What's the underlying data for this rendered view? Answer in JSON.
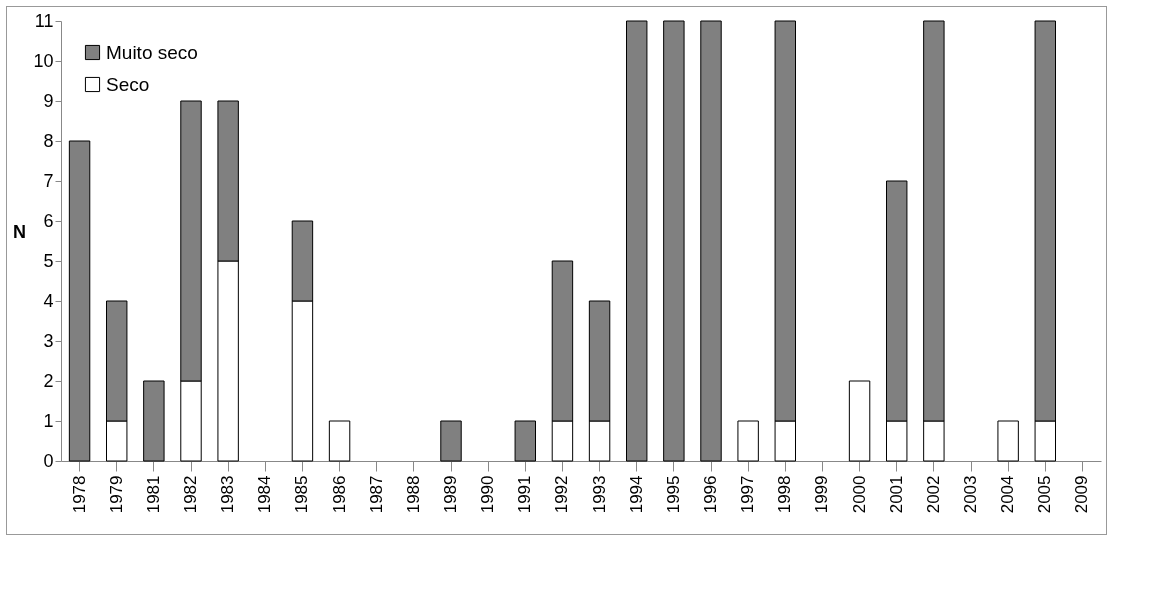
{
  "chart_data": {
    "type": "bar",
    "stacked": true,
    "ylabel": "N",
    "categories": [
      "1978",
      "1979",
      "1981",
      "1982",
      "1983",
      "1984",
      "1985",
      "1986",
      "1987",
      "1988",
      "1989",
      "1990",
      "1991",
      "1992",
      "1993",
      "1994",
      "1995",
      "1996",
      "1997",
      "1998",
      "1999",
      "2000",
      "2001",
      "2002",
      "2003",
      "2004",
      "2005",
      "2009"
    ],
    "series": [
      {
        "name": "Seco",
        "color": "#ffffff",
        "values": [
          0,
          1,
          0,
          2,
          5,
          0,
          4,
          1,
          0,
          0,
          0,
          0,
          0,
          1,
          1,
          0,
          0,
          0,
          1,
          1,
          0,
          2,
          1,
          1,
          0,
          1,
          1,
          0
        ]
      },
      {
        "name": "Muito seco",
        "color": "#808080",
        "values": [
          8,
          3,
          2,
          7,
          4,
          0,
          2,
          0,
          0,
          0,
          1,
          0,
          1,
          4,
          3,
          11,
          11,
          11,
          0,
          10,
          0,
          0,
          6,
          10,
          0,
          0,
          10,
          0
        ]
      }
    ],
    "ylim": [
      0,
      11
    ],
    "yticks": [
      0,
      1,
      2,
      3,
      4,
      5,
      6,
      7,
      8,
      9,
      10,
      11
    ],
    "grid": false,
    "legend": "top left"
  }
}
